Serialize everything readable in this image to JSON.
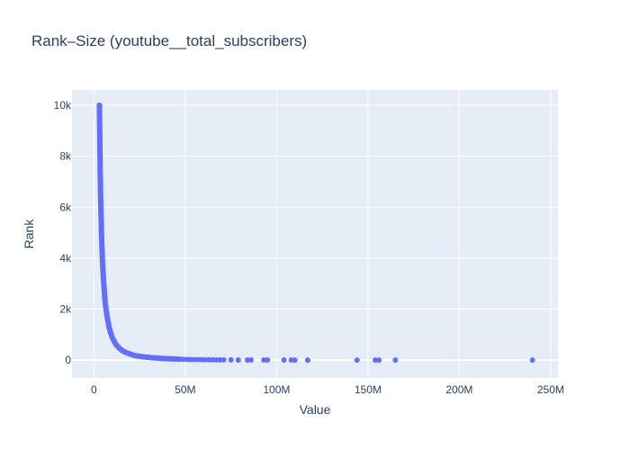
{
  "chart_data": {
    "type": "scatter",
    "title": "Rank–Size (youtube__total_subscribers)",
    "xlabel": "Value",
    "ylabel": "Rank",
    "xlim": [
      -12000000,
      254000000
    ],
    "ylim": [
      -700,
      10600
    ],
    "x_ticks": [
      0,
      50000000,
      100000000,
      150000000,
      200000000,
      250000000
    ],
    "x_tick_labels": [
      "0",
      "50M",
      "100M",
      "150M",
      "200M",
      "250M"
    ],
    "y_ticks": [
      0,
      2000,
      4000,
      6000,
      8000,
      10000
    ],
    "y_tick_labels": [
      "0",
      "2k",
      "4k",
      "6k",
      "8k",
      "10k"
    ],
    "grid": true,
    "marker_color": "#636efa",
    "plot_bg": "#e5ecf6",
    "series": [
      {
        "x": [
          3000000,
          3100000,
          3200000,
          3300000,
          3400000,
          3500000,
          3600000,
          3800000,
          4000000,
          4200000,
          4500000,
          4800000,
          5200000,
          5600000,
          6000000,
          6500000,
          7000000,
          7600000,
          8300000,
          9000000,
          10000000,
          11000000,
          12000000,
          13500000,
          15000000,
          17000000,
          19000000,
          21000000,
          23000000,
          26000000,
          29000000,
          32000000,
          35000000,
          38000000,
          41000000,
          44000000,
          47000000,
          49000000,
          51000000,
          53000000,
          55000000,
          57000000,
          59000000,
          61000000,
          63000000,
          65000000,
          67000000,
          69000000,
          71000000,
          75000000,
          79000000,
          84000000,
          86000000,
          93000000,
          95000000,
          104000000,
          108000000,
          110000000,
          117000000,
          144000000,
          154000000,
          156000000,
          165000000,
          240000000
        ],
        "y": [
          10000,
          9400,
          8800,
          8200,
          7600,
          7100,
          6600,
          6000,
          5400,
          4800,
          4200,
          3700,
          3200,
          2800,
          2400,
          2050,
          1800,
          1550,
          1300,
          1100,
          900,
          750,
          620,
          500,
          400,
          320,
          260,
          210,
          170,
          140,
          115,
          95,
          80,
          66,
          55,
          46,
          38,
          33,
          29,
          25,
          22,
          20,
          18,
          16,
          14,
          13,
          12,
          11,
          10,
          9,
          8,
          7,
          6,
          5,
          5,
          4,
          4,
          3,
          3,
          2,
          2,
          1,
          1,
          0
        ]
      }
    ]
  }
}
